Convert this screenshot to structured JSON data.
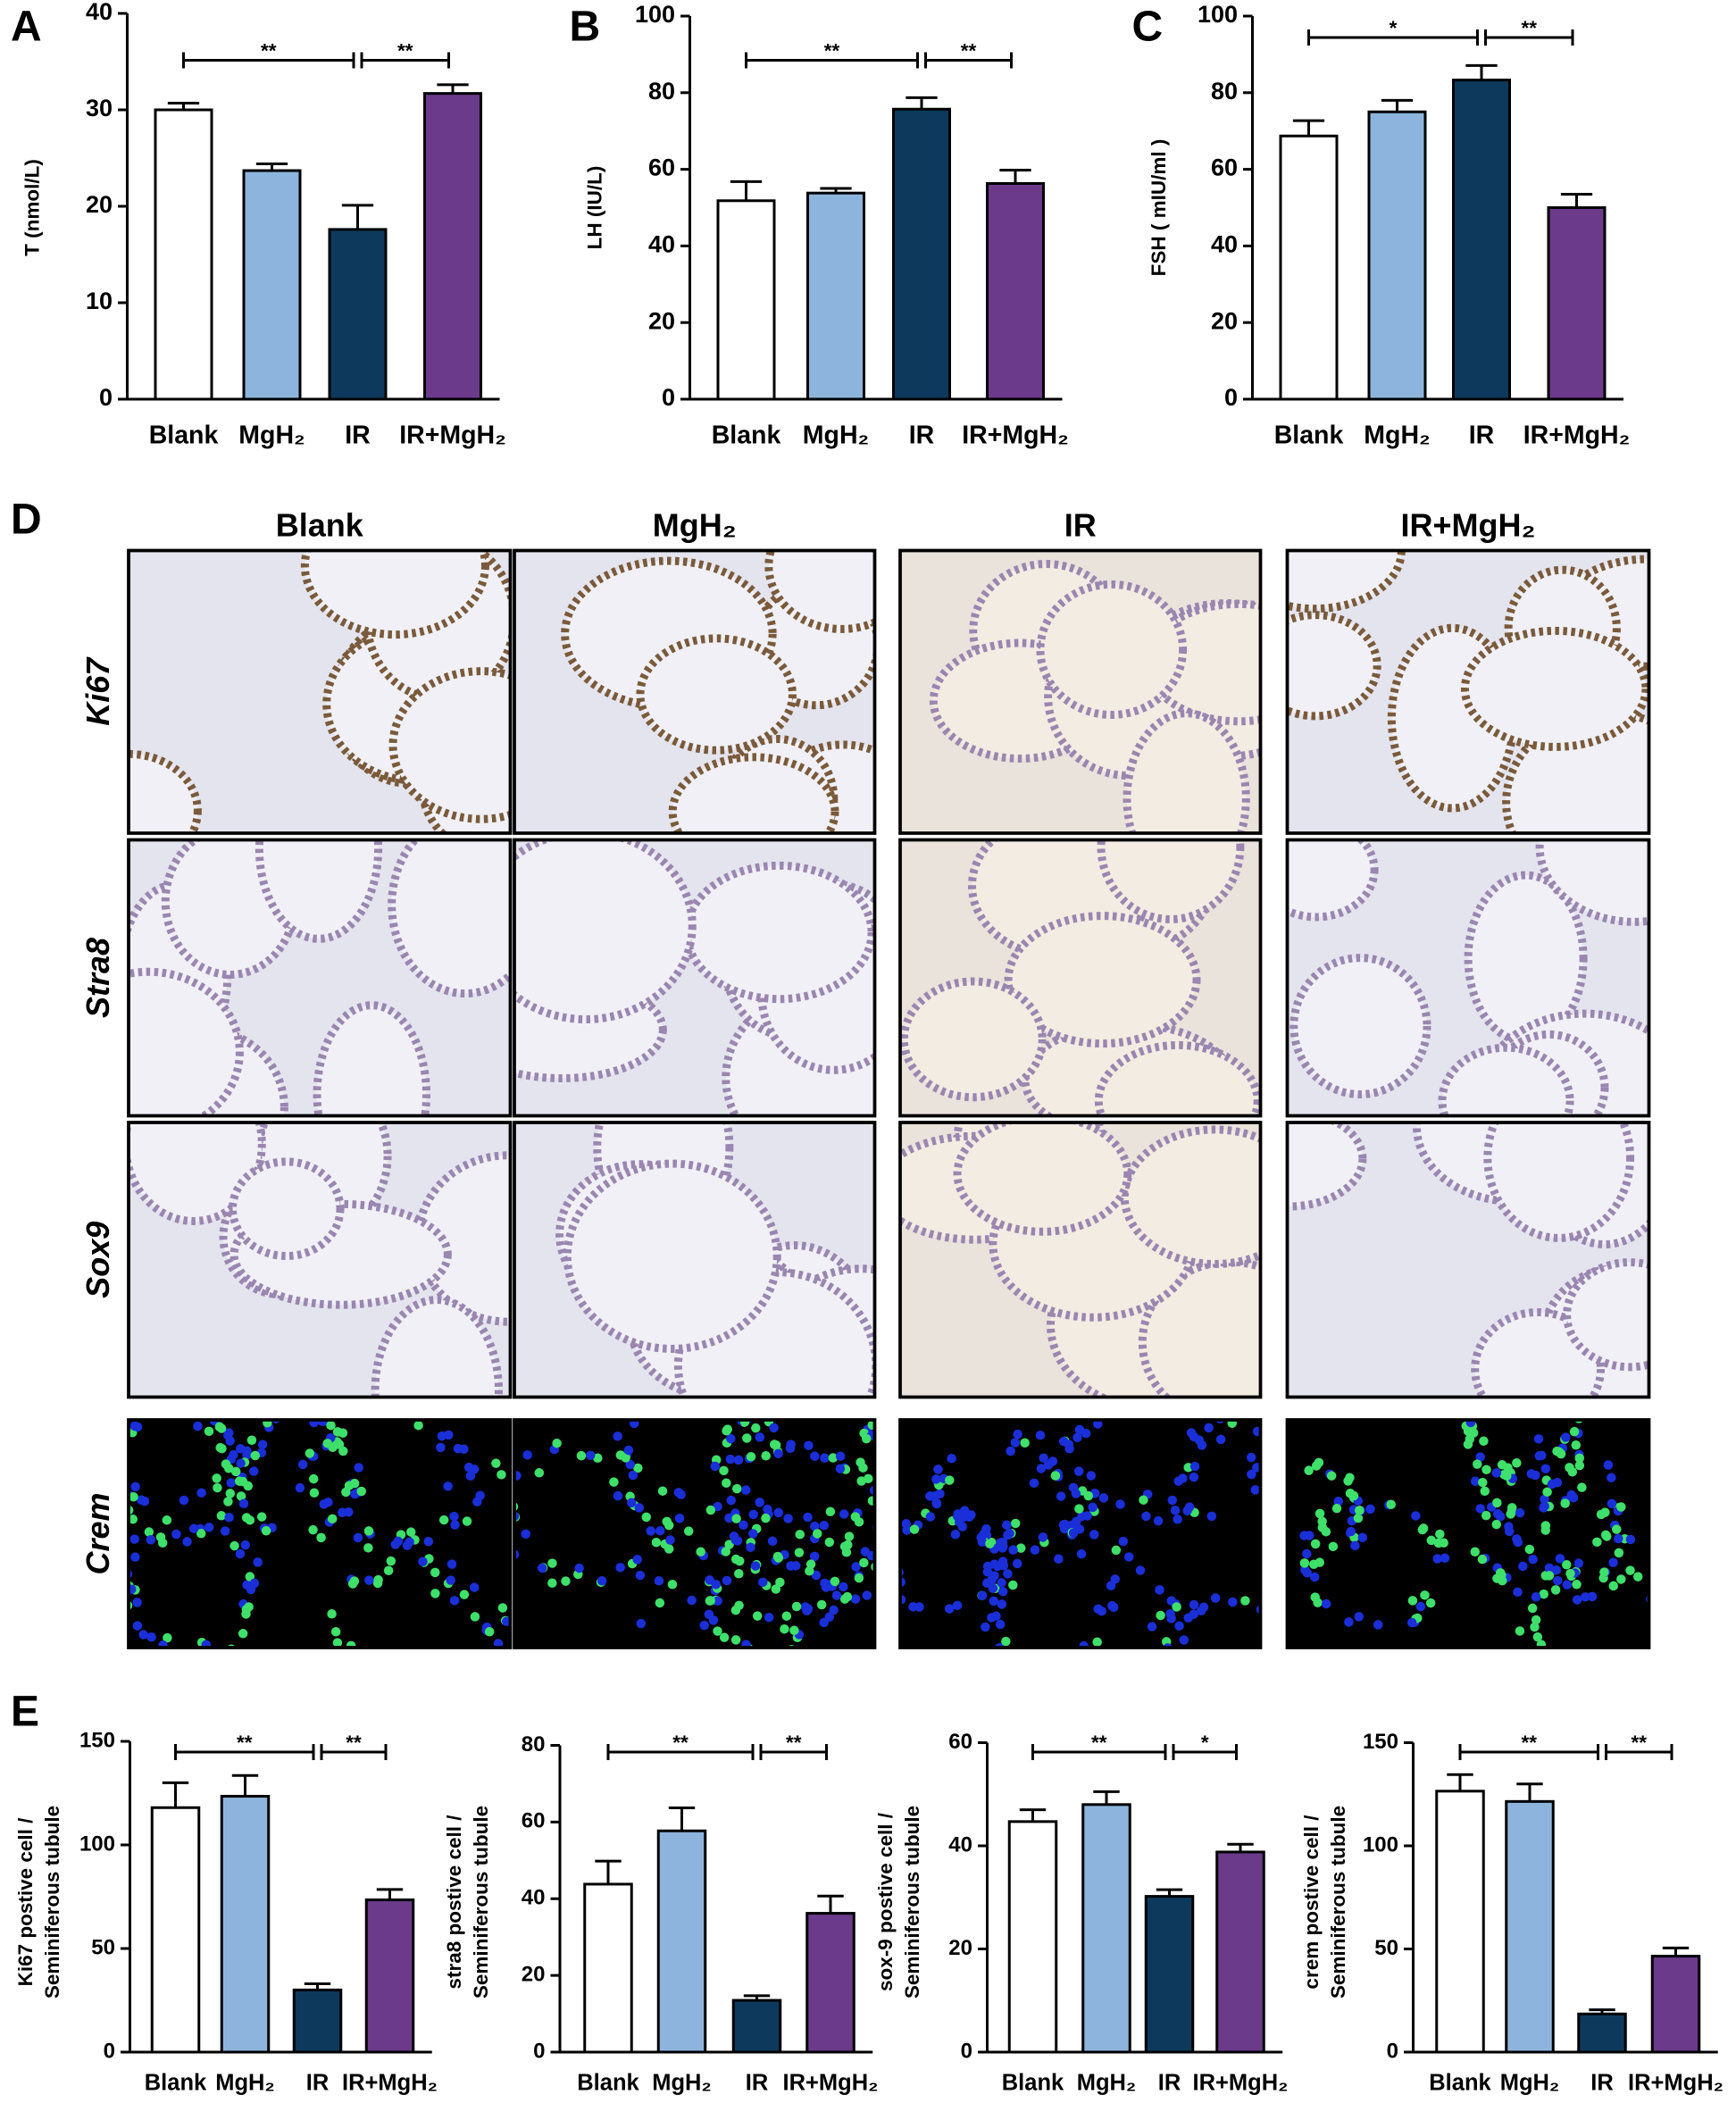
{
  "chart_data": [
    {
      "type": "bar",
      "panel": "A",
      "ylabel": "T (nmol/L)",
      "categories": [
        "Blank",
        "MgH₂",
        "IR",
        "IR+MgH₂"
      ],
      "values": [
        30,
        23.7,
        17.6,
        31.7
      ],
      "errors": [
        0.7,
        0.7,
        2.5,
        0.9
      ],
      "colors": [
        "#ffffff",
        "#8db4dc",
        "#0d3a5c",
        "#6b3a8a"
      ],
      "ylim": [
        0,
        40
      ],
      "yticks": [
        0,
        10,
        20,
        30,
        40
      ],
      "significance": [
        {
          "from": "Blank",
          "to": "IR",
          "label": "**"
        },
        {
          "from": "IR",
          "to": "IR+MgH₂",
          "label": "**"
        }
      ]
    },
    {
      "type": "bar",
      "panel": "B",
      "ylabel": "LH (IU/L)",
      "categories": [
        "Blank",
        "MgH₂",
        "IR",
        "IR+MgH₂"
      ],
      "values": [
        51.8,
        53.8,
        75.7,
        56.3
      ],
      "errors": [
        5,
        1.2,
        3,
        3.5
      ],
      "colors": [
        "#ffffff",
        "#8db4dc",
        "#0d3a5c",
        "#6b3a8a"
      ],
      "ylim": [
        0,
        100
      ],
      "yticks": [
        0,
        20,
        40,
        60,
        80,
        100
      ],
      "significance": [
        {
          "from": "Blank",
          "to": "IR",
          "label": "**"
        },
        {
          "from": "IR",
          "to": "IR+MgH₂",
          "label": "**"
        }
      ]
    },
    {
      "type": "bar",
      "panel": "C",
      "ylabel": "FSH ( mIU/ml )",
      "categories": [
        "Blank",
        "MgH₂",
        "IR",
        "IR+MgH₂"
      ],
      "values": [
        68.7,
        75,
        83.3,
        50
      ],
      "errors": [
        4,
        3,
        3.8,
        3.5
      ],
      "colors": [
        "#ffffff",
        "#8db4dc",
        "#0d3a5c",
        "#6b3a8a"
      ],
      "ylim": [
        0,
        100
      ],
      "yticks": [
        0,
        20,
        40,
        60,
        80,
        100
      ],
      "significance": [
        {
          "from": "Blank",
          "to": "IR",
          "label": "*"
        },
        {
          "from": "IR",
          "to": "IR+MgH₂",
          "label": "**"
        }
      ]
    },
    {
      "type": "bar",
      "panel": "E",
      "ylabel": [
        "Ki67 postive cell /",
        "Seminiferous tubule"
      ],
      "categories": [
        "Blank",
        "MgH₂",
        "IR",
        "IR+MgH₂"
      ],
      "values": [
        118,
        123.5,
        30,
        73.5
      ],
      "errors": [
        12,
        10,
        3,
        5
      ],
      "colors": [
        "#ffffff",
        "#8db4dc",
        "#0d3a5c",
        "#6b3a8a"
      ],
      "ylim": [
        0,
        150
      ],
      "yticks": [
        0,
        50,
        100,
        150
      ],
      "significance": [
        {
          "from": "Blank",
          "to": "IR",
          "label": "**"
        },
        {
          "from": "IR",
          "to": "IR+MgH₂",
          "label": "**"
        }
      ]
    },
    {
      "type": "bar",
      "ylabel": [
        "stra8 postive cell /",
        "Seminiferous tubule"
      ],
      "categories": [
        "Blank",
        "MgH₂",
        "IR",
        "IR+MgH₂"
      ],
      "values": [
        43.8,
        57.7,
        13.5,
        36.2
      ],
      "errors": [
        6,
        6,
        1.2,
        4.5
      ],
      "colors": [
        "#ffffff",
        "#8db4dc",
        "#0d3a5c",
        "#6b3a8a"
      ],
      "ylim": [
        0,
        80
      ],
      "yticks": [
        0,
        20,
        40,
        60,
        80
      ],
      "significance": [
        {
          "from": "Blank",
          "to": "IR",
          "label": "**"
        },
        {
          "from": "IR",
          "to": "IR+MgH₂",
          "label": "**"
        }
      ]
    },
    {
      "type": "bar",
      "ylabel": [
        "sox-9 postive cell /",
        "Seminiferous tubule"
      ],
      "categories": [
        "Blank",
        "MgH₂",
        "IR",
        "IR+MgH₂"
      ],
      "values": [
        44.7,
        48,
        30.2,
        38.8
      ],
      "errors": [
        2.3,
        2.5,
        1.3,
        1.5
      ],
      "colors": [
        "#ffffff",
        "#8db4dc",
        "#0d3a5c",
        "#6b3a8a"
      ],
      "ylim": [
        0,
        60
      ],
      "yticks": [
        0,
        20,
        40,
        60
      ],
      "significance": [
        {
          "from": "Blank",
          "to": "IR",
          "label": "**"
        },
        {
          "from": "IR",
          "to": "IR+MgH₂",
          "label": "*"
        }
      ]
    },
    {
      "type": "bar",
      "ylabel": [
        "crem postive cell /",
        "Seminiferous tubule"
      ],
      "categories": [
        "Blank",
        "MgH₂",
        "IR",
        "IR+MgH₂"
      ],
      "values": [
        126.5,
        121.5,
        18.5,
        46.5
      ],
      "errors": [
        8,
        8.5,
        2,
        4
      ],
      "colors": [
        "#ffffff",
        "#8db4dc",
        "#0d3a5c",
        "#6b3a8a"
      ],
      "ylim": [
        0,
        150
      ],
      "yticks": [
        0,
        50,
        100,
        150
      ],
      "significance": [
        {
          "from": "Blank",
          "to": "IR",
          "label": "**"
        },
        {
          "from": "IR",
          "to": "IR+MgH₂",
          "label": "**"
        }
      ]
    }
  ],
  "panel_d": {
    "label": "D",
    "columns": [
      "Blank",
      "MgH₂",
      "IR",
      "IR+MgH₂"
    ],
    "rows": [
      "Ki67",
      "Stra8",
      "Sox9",
      "Crem"
    ]
  }
}
